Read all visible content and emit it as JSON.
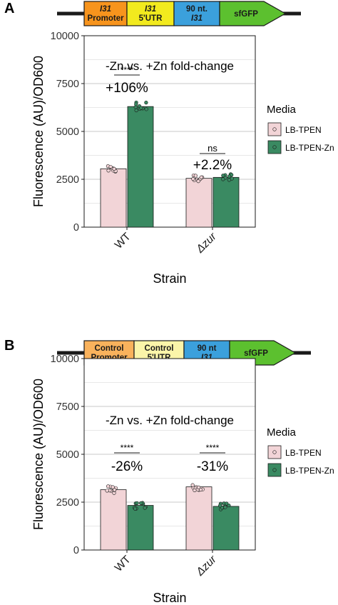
{
  "figure": {
    "panels": [
      {
        "letter": "A",
        "construct": [
          {
            "lines": [
              "I31",
              "Promoter"
            ],
            "italic": [
              true,
              false
            ],
            "color": "#f7941d"
          },
          {
            "lines": [
              "I31",
              "5'UTR"
            ],
            "italic": [
              true,
              false
            ],
            "color": "#f2ea1e"
          },
          {
            "lines": [
              "90 nt.",
              "I31"
            ],
            "italic": [
              false,
              true
            ],
            "color": "#3ba0dc"
          },
          {
            "lines": [
              "sfGFP"
            ],
            "italic": [
              false
            ],
            "color": "#5cc02f",
            "arrow": true
          }
        ],
        "annotation": "-Zn vs. +Zn  fold-change",
        "comparisons": [
          {
            "stars": "****",
            "change": "+106%"
          },
          {
            "stars": "ns",
            "change": "+2.2%"
          }
        ]
      },
      {
        "letter": "B",
        "construct": [
          {
            "lines": [
              "Control",
              "Promoter"
            ],
            "italic": [
              false,
              false
            ],
            "color": "#f9b25c"
          },
          {
            "lines": [
              "Control",
              "5'UTR"
            ],
            "italic": [
              false,
              false
            ],
            "color": "#fbf5a9"
          },
          {
            "lines": [
              "90 nt",
              "I31"
            ],
            "italic": [
              false,
              true
            ],
            "color": "#3ba0dc"
          },
          {
            "lines": [
              "sfGFP"
            ],
            "italic": [
              false
            ],
            "color": "#5cc02f",
            "arrow": true
          }
        ],
        "annotation": "-Zn vs. +Zn  fold-change",
        "comparisons": [
          {
            "stars": "****",
            "change": "-26%"
          },
          {
            "stars": "****",
            "change": "-31%"
          }
        ]
      }
    ]
  },
  "chart_data": [
    {
      "type": "bar",
      "categories": [
        "WT",
        "Δzur"
      ],
      "category_italic": [
        false,
        true
      ],
      "xlabel": "Strain",
      "ylabel": "Fluorescence (AU)/OD600",
      "ylim": [
        0,
        10000
      ],
      "yticks": [
        0,
        2500,
        5000,
        7500,
        10000
      ],
      "legend": {
        "title": "Media",
        "position": "right"
      },
      "series": [
        {
          "name": "LB-TPEN",
          "color": "#f2d4d7",
          "values": [
            3050,
            2550
          ]
        },
        {
          "name": "LB-TPEN-Zn",
          "color": "#3a8a62",
          "values": [
            6300,
            2600
          ]
        }
      ]
    },
    {
      "type": "bar",
      "categories": [
        "WT",
        "Δzur"
      ],
      "category_italic": [
        false,
        true
      ],
      "xlabel": "Strain",
      "ylabel": "Fluorescence (AU)/OD600",
      "ylim": [
        0,
        10000
      ],
      "yticks": [
        0,
        2500,
        5000,
        7500,
        10000
      ],
      "legend": {
        "title": "Media",
        "position": "right"
      },
      "series": [
        {
          "name": "LB-TPEN",
          "color": "#f2d4d7",
          "values": [
            3150,
            3300
          ]
        },
        {
          "name": "LB-TPEN-Zn",
          "color": "#3a8a62",
          "values": [
            2330,
            2280
          ]
        }
      ]
    }
  ]
}
